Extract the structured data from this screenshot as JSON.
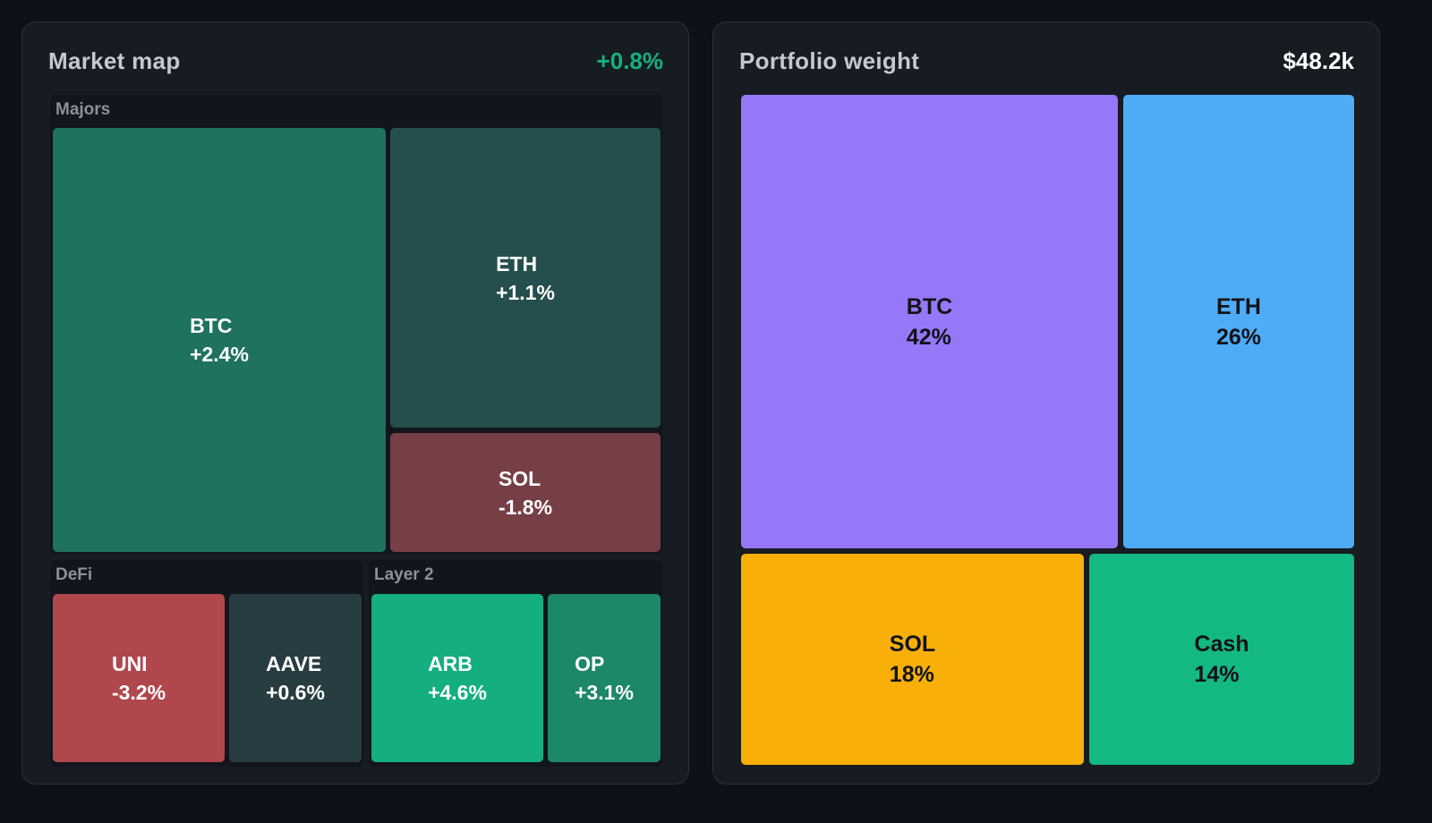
{
  "market_map": {
    "title": "Market map",
    "change": "+0.8%",
    "groups": [
      {
        "label": "Majors",
        "tiles": [
          {
            "symbol": "BTC",
            "change": "+2.4%",
            "color": "#1f7160"
          },
          {
            "symbol": "ETH",
            "change": "+1.1%",
            "color": "#254f4e"
          },
          {
            "symbol": "SOL",
            "change": "-1.8%",
            "color": "#763e45"
          }
        ]
      },
      {
        "label": "DeFi",
        "tiles": [
          {
            "symbol": "UNI",
            "change": "-3.2%",
            "color": "#b0474c"
          },
          {
            "symbol": "AAVE",
            "change": "+0.6%",
            "color": "#283d42"
          }
        ]
      },
      {
        "label": "Layer 2",
        "tiles": [
          {
            "symbol": "ARB",
            "change": "+4.6%",
            "color": "#15ae80"
          },
          {
            "symbol": "OP",
            "change": "+3.1%",
            "color": "#1c8769"
          }
        ]
      }
    ]
  },
  "portfolio_weight": {
    "title": "Portfolio weight",
    "total": "$48.2k",
    "tiles": [
      {
        "symbol": "BTC",
        "weight": "42%",
        "color": "#9677f8"
      },
      {
        "symbol": "ETH",
        "weight": "26%",
        "color": "#4eacf7"
      },
      {
        "symbol": "SOL",
        "weight": "18%",
        "color": "#f8af07"
      },
      {
        "symbol": "Cash",
        "weight": "14%",
        "color": "#13b882"
      }
    ]
  },
  "chart_data": [
    {
      "type": "heatmap",
      "title": "Market map",
      "summary_change": "+0.8%",
      "groups": [
        "Majors",
        "DeFi",
        "Layer 2"
      ],
      "items": [
        {
          "group": "Majors",
          "name": "BTC",
          "change_pct": 2.4
        },
        {
          "group": "Majors",
          "name": "ETH",
          "change_pct": 1.1
        },
        {
          "group": "Majors",
          "name": "SOL",
          "change_pct": -1.8
        },
        {
          "group": "DeFi",
          "name": "UNI",
          "change_pct": -3.2
        },
        {
          "group": "DeFi",
          "name": "AAVE",
          "change_pct": 0.6
        },
        {
          "group": "Layer 2",
          "name": "ARB",
          "change_pct": 4.6
        },
        {
          "group": "Layer 2",
          "name": "OP",
          "change_pct": 3.1
        }
      ]
    },
    {
      "type": "heatmap",
      "title": "Portfolio weight",
      "total": "$48.2k",
      "categories": [
        "BTC",
        "ETH",
        "SOL",
        "Cash"
      ],
      "values": [
        42,
        26,
        18,
        14
      ]
    }
  ]
}
